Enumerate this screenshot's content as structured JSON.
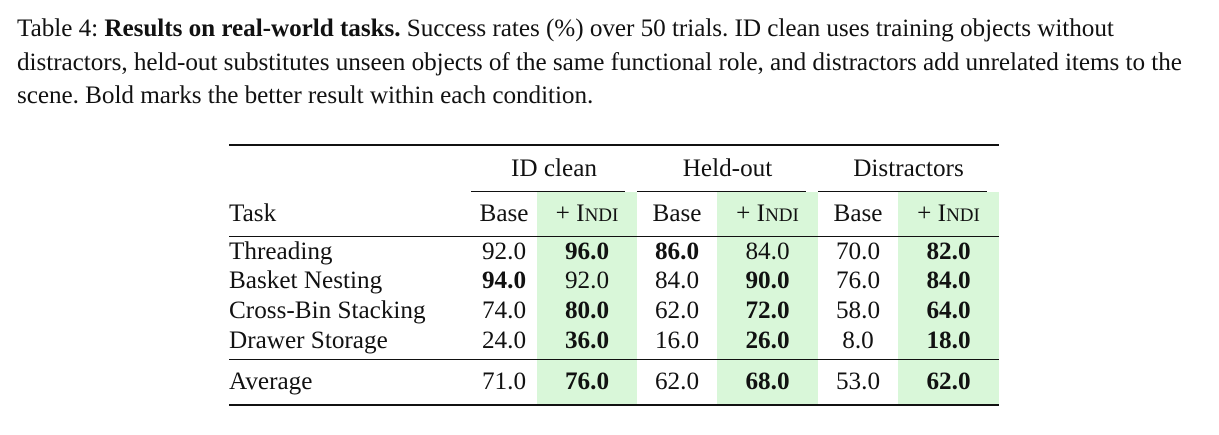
{
  "caption": {
    "label": "Table 4:",
    "title": "Results on real-world tasks.",
    "text": "Success rates (%) over 50 trials. ID clean uses training objects without distractors, held-out substitutes unseen objects of the same functional role, and distractors add unrelated items to the scene. Bold marks the better result within each condition."
  },
  "table": {
    "groups": [
      "ID clean",
      "Held-out",
      "Distractors"
    ],
    "task_header": "Task",
    "base_header": "Base",
    "indi_prefix": "+ ",
    "indi_first": "I",
    "indi_rest": "NDI",
    "rows": [
      {
        "task": "Threading",
        "v": [
          "92.0",
          "96.0",
          "86.0",
          "84.0",
          "70.0",
          "82.0"
        ],
        "bold": [
          false,
          true,
          true,
          false,
          false,
          true
        ]
      },
      {
        "task": "Basket Nesting",
        "v": [
          "94.0",
          "92.0",
          "84.0",
          "90.0",
          "76.0",
          "84.0"
        ],
        "bold": [
          true,
          false,
          false,
          true,
          false,
          true
        ]
      },
      {
        "task": "Cross-Bin Stacking",
        "v": [
          "74.0",
          "80.0",
          "62.0",
          "72.0",
          "58.0",
          "64.0"
        ],
        "bold": [
          false,
          true,
          false,
          true,
          false,
          true
        ]
      },
      {
        "task": "Drawer Storage",
        "v": [
          "24.0",
          "36.0",
          "16.0",
          "26.0",
          "8.0",
          "18.0"
        ],
        "bold": [
          false,
          true,
          false,
          true,
          false,
          true
        ]
      }
    ],
    "average": {
      "task": "Average",
      "v": [
        "71.0",
        "76.0",
        "62.0",
        "68.0",
        "53.0",
        "62.0"
      ],
      "bold": [
        false,
        true,
        false,
        true,
        false,
        true
      ]
    },
    "highlight_color": "#d9f7d9"
  }
}
